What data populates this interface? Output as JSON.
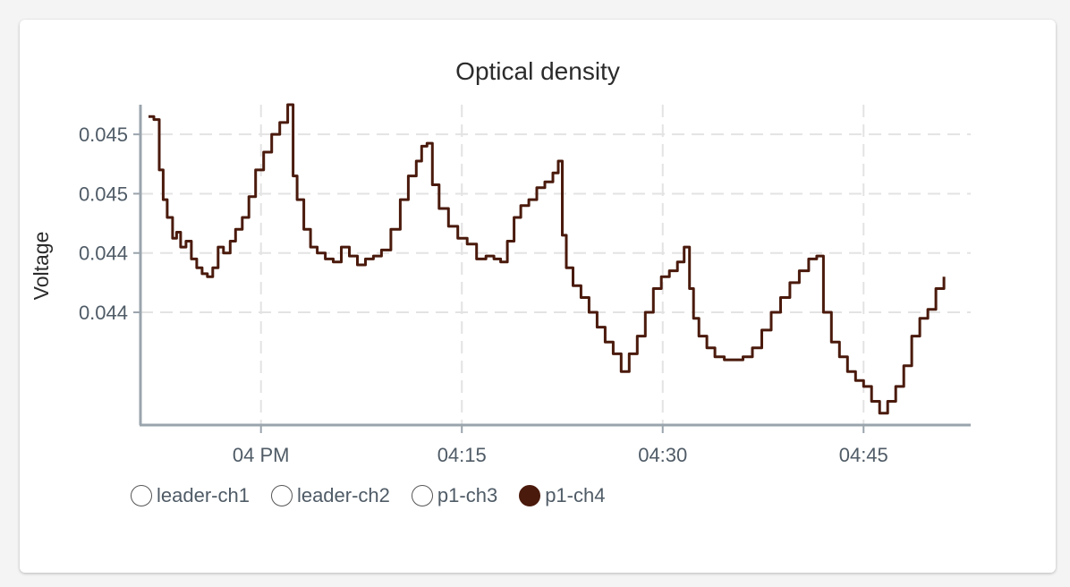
{
  "chart_data": {
    "type": "line",
    "title": "Optical density",
    "ylabel": "Voltage",
    "xlabel": "",
    "x_ticks": [
      "04 PM",
      "04:15",
      "04:30",
      "04:45"
    ],
    "y_ticks": [
      "0.045",
      "0.045",
      "0.044",
      "0.044"
    ],
    "grid": true,
    "legend_position": "bottom-left",
    "x_unit": "minutes after 4 PM",
    "xlim": [
      -9,
      53
    ],
    "ylim": [
      0.04402,
      0.0451
    ],
    "series": [
      {
        "name": "leader-ch1",
        "color": "#ffffff",
        "visible": false,
        "x": [],
        "y": []
      },
      {
        "name": "leader-ch2",
        "color": "#ffffff",
        "visible": false,
        "x": [],
        "y": []
      },
      {
        "name": "p1-ch3",
        "color": "#ffffff",
        "visible": false,
        "x": [],
        "y": []
      },
      {
        "name": "p1-ch4",
        "color": "#4a1a0c",
        "visible": true,
        "x": [
          -8.4,
          -8.0,
          -7.6,
          -7.3,
          -7.0,
          -6.6,
          -6.3,
          -6.0,
          -5.6,
          -5.2,
          -4.8,
          -4.4,
          -4.0,
          -3.6,
          -3.2,
          -2.8,
          -2.3,
          -1.9,
          -1.4,
          -0.9,
          -0.4,
          0.2,
          0.8,
          1.4,
          2.0,
          2.4,
          2.7,
          3.2,
          3.7,
          4.2,
          4.8,
          5.4,
          6.0,
          6.6,
          7.2,
          7.8,
          8.4,
          9.0,
          9.7,
          10.4,
          11.0,
          11.6,
          12.0,
          12.4,
          12.8,
          13.3,
          14.0,
          14.7,
          15.4,
          16.1,
          16.8,
          17.4,
          17.9,
          18.4,
          18.9,
          19.4,
          20.0,
          20.6,
          21.2,
          21.8,
          22.2,
          22.5,
          22.8,
          23.3,
          23.9,
          24.5,
          25.1,
          25.7,
          26.3,
          26.9,
          27.5,
          28.1,
          28.7,
          29.3,
          29.9,
          30.5,
          31.1,
          31.6,
          32.0,
          32.3,
          32.7,
          33.3,
          33.9,
          34.6,
          35.3,
          36.0,
          36.7,
          37.4,
          38.1,
          38.8,
          39.5,
          40.2,
          40.9,
          41.5,
          42.0,
          42.6,
          43.2,
          43.8,
          44.4,
          45.0,
          45.6,
          46.2,
          46.8,
          47.4,
          48.0,
          48.6,
          49.2,
          49.8,
          50.4,
          51.0
        ],
        "y": [
          0.04506,
          0.04505,
          0.04488,
          0.04478,
          0.04472,
          0.04465,
          0.04467,
          0.04462,
          0.04464,
          0.04458,
          0.04455,
          0.04453,
          0.04452,
          0.04455,
          0.04462,
          0.0446,
          0.04464,
          0.04468,
          0.04472,
          0.04479,
          0.04488,
          0.04494,
          0.045,
          0.04504,
          0.0451,
          0.04486,
          0.04478,
          0.04468,
          0.04462,
          0.0446,
          0.04458,
          0.04457,
          0.04462,
          0.04459,
          0.04456,
          0.04458,
          0.04459,
          0.04461,
          0.04468,
          0.04478,
          0.04486,
          0.04491,
          0.04496,
          0.04497,
          0.04483,
          0.04475,
          0.04469,
          0.04465,
          0.04463,
          0.04458,
          0.04459,
          0.04458,
          0.04457,
          0.04464,
          0.04472,
          0.04476,
          0.04478,
          0.04482,
          0.04484,
          0.04487,
          0.04491,
          0.04466,
          0.04455,
          0.04449,
          0.04445,
          0.0444,
          0.04435,
          0.0443,
          0.04426,
          0.0442,
          0.04426,
          0.04432,
          0.0444,
          0.04448,
          0.04452,
          0.04454,
          0.04457,
          0.04462,
          0.04448,
          0.04438,
          0.04432,
          0.04428,
          0.04425,
          0.04424,
          0.04424,
          0.04425,
          0.04428,
          0.04434,
          0.0444,
          0.04445,
          0.0445,
          0.04454,
          0.04458,
          0.04459,
          0.0444,
          0.0443,
          0.04425,
          0.0442,
          0.04417,
          0.04415,
          0.0441,
          0.04406,
          0.0441,
          0.04415,
          0.04422,
          0.04432,
          0.04438,
          0.04441,
          0.04448,
          0.04452
        ]
      }
    ]
  }
}
